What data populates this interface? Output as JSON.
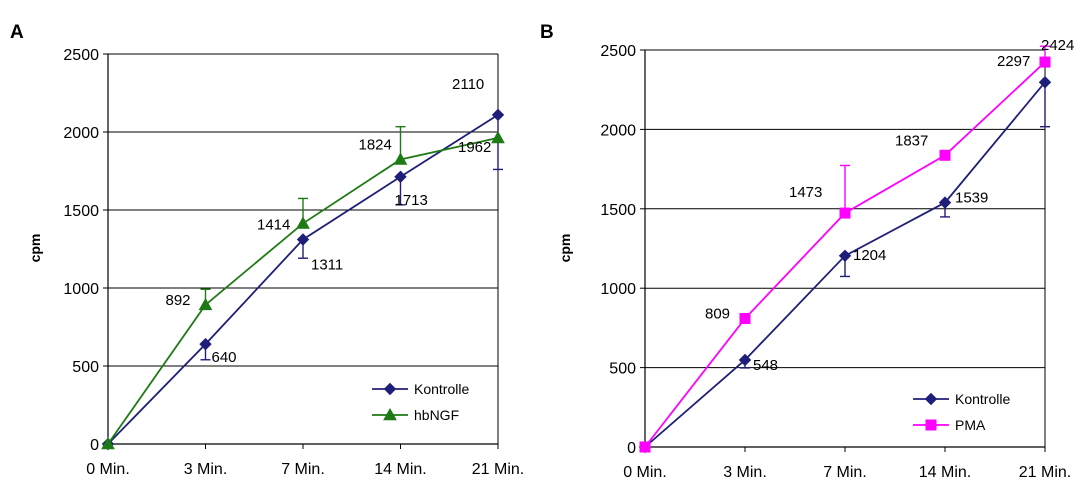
{
  "chart_data": [
    {
      "type": "line",
      "panel_label": "A",
      "ylabel": "cpm",
      "xlabel": "",
      "categories": [
        "0 Min.",
        "3 Min.",
        "7 Min.",
        "14 Min.",
        "21 Min."
      ],
      "ylim": [
        0,
        2500
      ],
      "yticks": [
        "0",
        "500",
        "1000",
        "1500",
        "2000",
        "2500"
      ],
      "grid": true,
      "legend_position": "bottom-right",
      "series": [
        {
          "name": "Kontrolle",
          "color": "#1f1f7a",
          "marker": "diamond",
          "values": [
            0,
            640,
            1311,
            1713,
            2110
          ],
          "error": [
            null,
            100,
            120,
            180,
            350
          ],
          "error_direction": "down",
          "labels": [
            "",
            "640",
            "1311",
            "1713",
            "2110"
          ]
        },
        {
          "name": "hbNGF",
          "color": "#1e7a14",
          "marker": "triangle",
          "values": [
            0,
            892,
            1414,
            1824,
            1962
          ],
          "error": [
            null,
            100,
            160,
            210,
            0
          ],
          "error_direction": "up",
          "labels": [
            "",
            "892",
            "1414",
            "1824",
            "1962"
          ]
        }
      ]
    },
    {
      "type": "line",
      "panel_label": "B",
      "ylabel": "cpm",
      "xlabel": "",
      "categories": [
        "0 Min.",
        "3 Min.",
        "7 Min.",
        "14 Min.",
        "21 Min."
      ],
      "ylim": [
        0,
        2500
      ],
      "yticks": [
        "0",
        "500",
        "1000",
        "1500",
        "2000",
        "2500"
      ],
      "grid": true,
      "legend_position": "bottom-right",
      "series": [
        {
          "name": "Kontrolle",
          "color": "#1f1f7a",
          "marker": "diamond",
          "values": [
            0,
            548,
            1204,
            1539,
            2297
          ],
          "error": [
            null,
            50,
            130,
            90,
            280
          ],
          "error_direction": "down",
          "labels": [
            "",
            "548",
            "1204",
            "1539",
            "2297"
          ]
        },
        {
          "name": "PMA",
          "color": "#ff00ff",
          "marker": "square",
          "values": [
            0,
            809,
            1473,
            1837,
            2424
          ],
          "error": [
            null,
            0,
            300,
            0,
            100
          ],
          "error_direction": "up",
          "labels": [
            "",
            "809",
            "1473",
            "1837",
            "2424"
          ]
        }
      ]
    }
  ]
}
